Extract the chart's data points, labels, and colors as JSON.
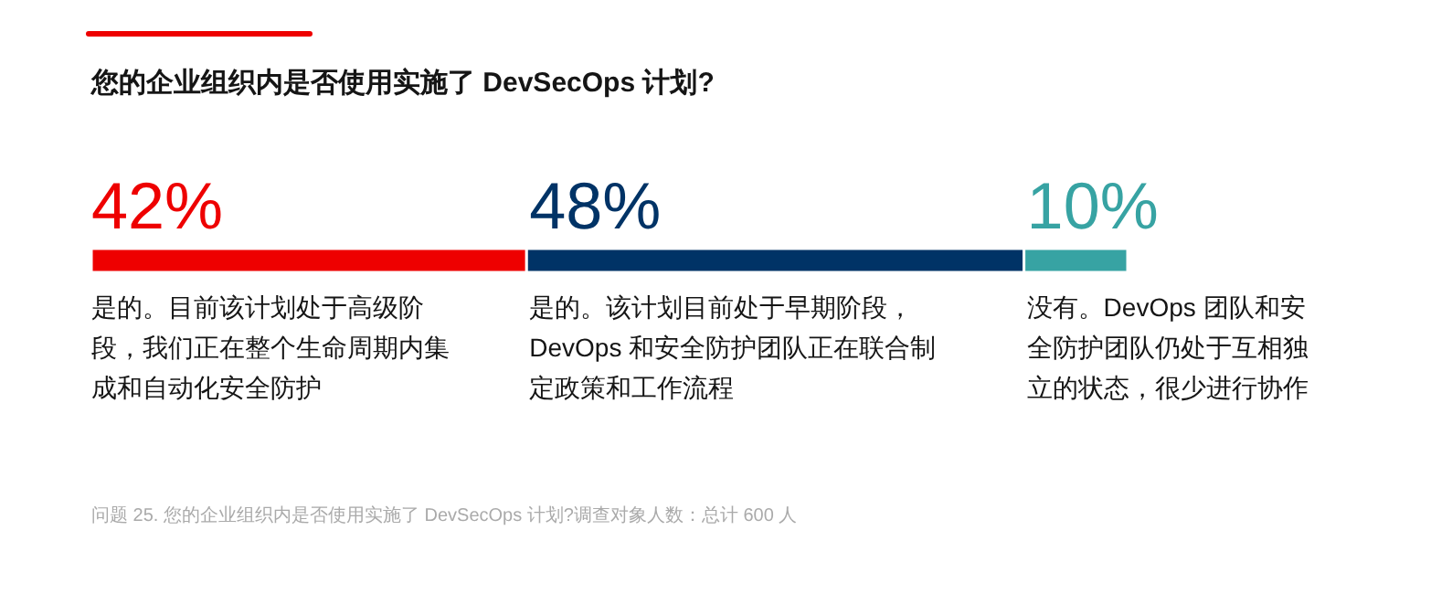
{
  "chart_data": {
    "type": "bar",
    "orientation": "horizontal",
    "stacked": true,
    "legend": "bottom",
    "title": "您的企业组织内是否使用实施了 DevSecOps 计划?",
    "categories": [
      null
    ],
    "series": [
      {
        "name": "是的。目前该计划处于高级阶段，我们正在整个生命周期内集成和自动化安全防护",
        "color": "#ee0000",
        "values": [
          42
        ],
        "value_labels": [
          "42%"
        ]
      },
      {
        "name": "是的。该计划目前处于早期阶段，DevOps 和安全防护团队正在联合制定政策和工作流程",
        "color": "#003366",
        "values": [
          48
        ],
        "value_labels": [
          "48%"
        ]
      },
      {
        "name": "没有。DevOps 团队和安全防护团队仍处于互相独立的状态，很少进行协作",
        "color": "#37a3a3",
        "values": [
          10
        ],
        "value_labels": [
          "10%"
        ]
      }
    ],
    "annotations": [
      "问题 25. 您的企业组织内是否使用实施了 DevSecOps 计划?调查对象人数：总计 600 人"
    ]
  }
}
